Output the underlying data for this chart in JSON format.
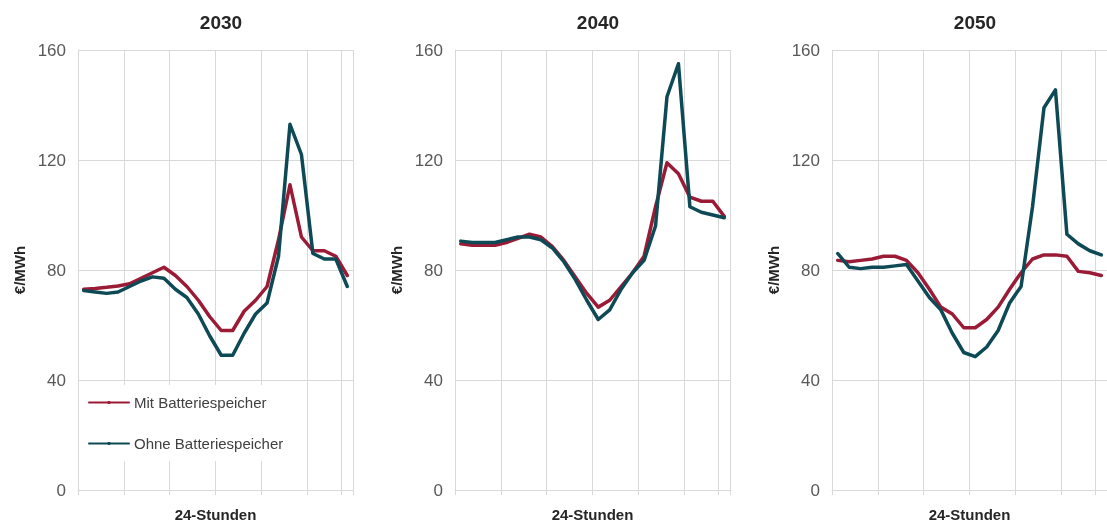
{
  "chart_data": [
    {
      "type": "line",
      "title": "2030",
      "xlabel": "24-Stunden",
      "ylabel": "€/MWh",
      "categories": [
        null,
        null,
        null,
        null,
        null,
        null,
        null,
        null,
        null,
        null,
        null,
        null,
        null,
        null,
        null,
        null,
        null,
        null,
        null,
        null,
        null,
        null,
        null,
        null
      ],
      "ylim": [
        0,
        160
      ],
      "yticks": [
        0,
        40,
        80,
        120,
        160
      ],
      "grid": true,
      "legend": "bottom left",
      "marker": "none",
      "series": [
        {
          "name": "Mit Batteriespeicher",
          "color": "#9b1b37",
          "values": [
            73,
            73.3,
            73.7,
            74.2,
            75,
            77,
            79,
            81,
            78,
            74,
            69,
            63,
            58,
            58,
            65,
            69,
            74,
            91,
            111,
            92,
            87,
            87,
            85,
            78
          ]
        },
        {
          "name": "Ohne Batteriespeicher",
          "color": "#0d4a56",
          "values": [
            72.5,
            72,
            71.5,
            72,
            74,
            76,
            77.5,
            77,
            73,
            70,
            64,
            56,
            49,
            49,
            57,
            64,
            68,
            85,
            133,
            122,
            86,
            84,
            84,
            74
          ]
        }
      ]
    },
    {
      "type": "line",
      "title": "2040",
      "xlabel": "24-Stunden",
      "ylabel": "€/MWh",
      "categories": [
        null,
        null,
        null,
        null,
        null,
        null,
        null,
        null,
        null,
        null,
        null,
        null,
        null,
        null,
        null,
        null,
        null,
        null,
        null,
        null,
        null,
        null,
        null,
        null
      ],
      "ylim": [
        0,
        160
      ],
      "yticks": [
        0,
        40,
        80,
        120,
        160
      ],
      "grid": true,
      "marker": "none",
      "series": [
        {
          "color": "#9b1b37",
          "values": [
            89.5,
            89,
            89,
            89,
            90,
            91.5,
            93,
            92,
            88.5,
            83.5,
            77.5,
            71.5,
            66.5,
            69,
            74,
            79,
            85,
            103,
            119,
            115,
            106.5,
            105,
            105,
            99.5
          ]
        },
        {
          "color": "#0d4a56",
          "values": [
            90.5,
            90,
            90,
            90,
            91,
            92,
            92,
            91,
            88,
            83,
            76.5,
            69,
            62,
            65.5,
            73,
            79,
            83.5,
            96,
            143,
            155,
            103,
            101,
            100,
            99
          ]
        }
      ]
    },
    {
      "type": "line",
      "title": "2050",
      "xlabel": "24-Stunden",
      "ylabel": "€/MWh",
      "categories": [
        null,
        null,
        null,
        null,
        null,
        null,
        null,
        null,
        null,
        null,
        null,
        null,
        null,
        null,
        null,
        null,
        null,
        null,
        null,
        null,
        null,
        null,
        null,
        null
      ],
      "ylim": [
        0,
        160
      ],
      "yticks": [
        0,
        40,
        80,
        120,
        160
      ],
      "grid": true,
      "marker": "none",
      "series": [
        {
          "color": "#9b1b37",
          "values": [
            83.5,
            83,
            83.5,
            84,
            85,
            85,
            83.5,
            79,
            73,
            66.5,
            64,
            59,
            59,
            62,
            66.5,
            73,
            79,
            84,
            85.5,
            85.5,
            85,
            79.5,
            79,
            78
          ]
        },
        {
          "color": "#0d4a56",
          "values": [
            86,
            81,
            80.5,
            81,
            81,
            81.5,
            82,
            76,
            70,
            65.5,
            57,
            50,
            48.5,
            52,
            58,
            68,
            74,
            103,
            139,
            145.5,
            93,
            89.5,
            87,
            85.5
          ]
        }
      ]
    }
  ]
}
